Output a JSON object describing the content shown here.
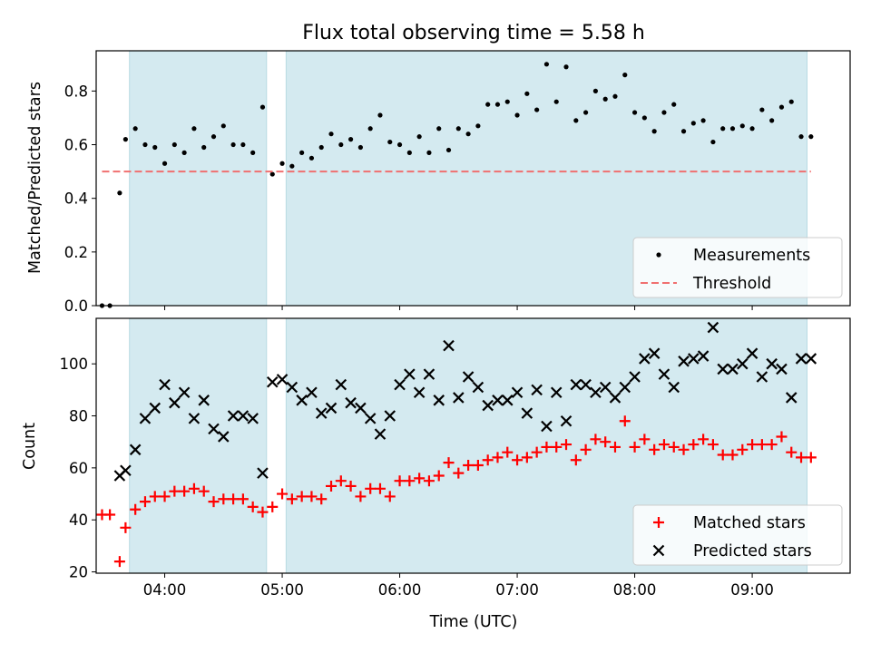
{
  "figure": {
    "title": "Flux total observing time = 5.58 h"
  },
  "chart_data": [
    {
      "type": "scatter",
      "title": "Flux total observing time = 5.58 h",
      "xlabel": "",
      "ylabel": "Matched/Predicted stars",
      "xlim": [
        "03:25",
        "09:50"
      ],
      "ylim": [
        0,
        0.95
      ],
      "xticks": [
        "04:00",
        "05:00",
        "06:00",
        "07:00",
        "08:00",
        "09:00"
      ],
      "xtick_labels_shown": false,
      "yticks": [
        0.0,
        0.2,
        0.4,
        0.6,
        0.8
      ],
      "ytick_labels": [
        "0.0",
        "0.2",
        "0.4",
        "0.6",
        "0.8"
      ],
      "shaded_intervals": [
        [
          "03:42",
          "04:52"
        ],
        [
          "05:02",
          "09:28"
        ]
      ],
      "shade_color": "#d4eaf0",
      "legend_position": "lower right",
      "series": [
        {
          "name": "Measurements",
          "kind": "scatter",
          "marker": "dot",
          "color": "#000000",
          "x": [
            "03:28",
            "03:32",
            "03:37",
            "03:40",
            "03:45",
            "03:50",
            "03:55",
            "04:00",
            "04:05",
            "04:10",
            "04:15",
            "04:20",
            "04:25",
            "04:30",
            "04:35",
            "04:40",
            "04:45",
            "04:50",
            "04:55",
            "05:00",
            "05:05",
            "05:10",
            "05:15",
            "05:20",
            "05:25",
            "05:30",
            "05:35",
            "05:40",
            "05:45",
            "05:50",
            "05:55",
            "06:00",
            "06:05",
            "06:10",
            "06:15",
            "06:20",
            "06:25",
            "06:30",
            "06:35",
            "06:40",
            "06:45",
            "06:50",
            "06:55",
            "07:00",
            "07:05",
            "07:10",
            "07:15",
            "07:20",
            "07:25",
            "07:30",
            "07:35",
            "07:40",
            "07:45",
            "07:50",
            "07:55",
            "08:00",
            "08:05",
            "08:10",
            "08:15",
            "08:20",
            "08:25",
            "08:30",
            "08:35",
            "08:40",
            "08:45",
            "08:50",
            "08:55",
            "09:00",
            "09:05",
            "09:10",
            "09:15",
            "09:20",
            "09:25",
            "09:30"
          ],
          "y": [
            0.0,
            0.0,
            0.42,
            0.62,
            0.66,
            0.6,
            0.59,
            0.53,
            0.6,
            0.57,
            0.66,
            0.59,
            0.63,
            0.67,
            0.6,
            0.6,
            0.57,
            0.74,
            0.49,
            0.53,
            0.52,
            0.57,
            0.55,
            0.59,
            0.64,
            0.6,
            0.62,
            0.59,
            0.66,
            0.71,
            0.61,
            0.6,
            0.57,
            0.63,
            0.57,
            0.66,
            0.58,
            0.66,
            0.64,
            0.67,
            0.75,
            0.75,
            0.76,
            0.71,
            0.79,
            0.73,
            0.9,
            0.76,
            0.89,
            0.69,
            0.72,
            0.8,
            0.77,
            0.78,
            0.86,
            0.72,
            0.7,
            0.65,
            0.72,
            0.75,
            0.65,
            0.68,
            0.69,
            0.61,
            0.66,
            0.66,
            0.67,
            0.66,
            0.73,
            0.69,
            0.74,
            0.76,
            0.63,
            0.63
          ]
        },
        {
          "name": "Threshold",
          "kind": "hline",
          "style": "dashed",
          "color": "#f07070",
          "x": [
            "03:28",
            "09:30"
          ],
          "y": [
            0.5,
            0.5
          ]
        }
      ]
    },
    {
      "type": "scatter",
      "title": "",
      "xlabel": "Time (UTC)",
      "ylabel": "Count",
      "xlim": [
        "03:25",
        "09:50"
      ],
      "ylim": [
        19.5,
        117.5
      ],
      "xticks": [
        "04:00",
        "05:00",
        "06:00",
        "07:00",
        "08:00",
        "09:00"
      ],
      "xtick_labels_shown": true,
      "yticks": [
        20,
        40,
        60,
        80,
        100
      ],
      "ytick_labels": [
        "20",
        "40",
        "60",
        "80",
        "100"
      ],
      "shaded_intervals": [
        [
          "03:42",
          "04:52"
        ],
        [
          "05:02",
          "09:28"
        ]
      ],
      "shade_color": "#d4eaf0",
      "legend_position": "lower right",
      "series": [
        {
          "name": "Matched stars",
          "kind": "scatter",
          "marker": "plus",
          "color": "#ff0000",
          "x": [
            "03:28",
            "03:32",
            "03:37",
            "03:40",
            "03:45",
            "03:50",
            "03:55",
            "04:00",
            "04:05",
            "04:10",
            "04:15",
            "04:20",
            "04:25",
            "04:30",
            "04:35",
            "04:40",
            "04:45",
            "04:50",
            "04:55",
            "05:00",
            "05:05",
            "05:10",
            "05:15",
            "05:20",
            "05:25",
            "05:30",
            "05:35",
            "05:40",
            "05:45",
            "05:50",
            "05:55",
            "06:00",
            "06:05",
            "06:10",
            "06:15",
            "06:20",
            "06:25",
            "06:30",
            "06:35",
            "06:40",
            "06:45",
            "06:50",
            "06:55",
            "07:00",
            "07:05",
            "07:10",
            "07:15",
            "07:20",
            "07:25",
            "07:30",
            "07:35",
            "07:40",
            "07:45",
            "07:50",
            "07:55",
            "08:00",
            "08:05",
            "08:10",
            "08:15",
            "08:20",
            "08:25",
            "08:30",
            "08:35",
            "08:40",
            "08:45",
            "08:50",
            "08:55",
            "09:00",
            "09:05",
            "09:10",
            "09:15",
            "09:20",
            "09:25",
            "09:30"
          ],
          "y": [
            42,
            42,
            24,
            37,
            44,
            47,
            49,
            49,
            51,
            51,
            52,
            51,
            47,
            48,
            48,
            48,
            45,
            43,
            45,
            50,
            48,
            49,
            49,
            48,
            53,
            55,
            53,
            49,
            52,
            52,
            49,
            55,
            55,
            56,
            55,
            57,
            62,
            58,
            61,
            61,
            63,
            64,
            66,
            63,
            64,
            66,
            68,
            68,
            69,
            63,
            67,
            71,
            70,
            68,
            78,
            68,
            71,
            67,
            69,
            68,
            67,
            69,
            71,
            69,
            65,
            65,
            67,
            69,
            69,
            69,
            72,
            66,
            64,
            64
          ]
        },
        {
          "name": "Predicted stars",
          "kind": "scatter",
          "marker": "x",
          "color": "#000000",
          "x": [
            "03:37",
            "03:40",
            "03:45",
            "03:50",
            "03:55",
            "04:00",
            "04:05",
            "04:10",
            "04:15",
            "04:20",
            "04:25",
            "04:30",
            "04:35",
            "04:40",
            "04:45",
            "04:50",
            "04:55",
            "05:00",
            "05:05",
            "05:10",
            "05:15",
            "05:20",
            "05:25",
            "05:30",
            "05:35",
            "05:40",
            "05:45",
            "05:50",
            "05:55",
            "06:00",
            "06:05",
            "06:10",
            "06:15",
            "06:20",
            "06:25",
            "06:30",
            "06:35",
            "06:40",
            "06:45",
            "06:50",
            "06:55",
            "07:00",
            "07:05",
            "07:10",
            "07:15",
            "07:20",
            "07:25",
            "07:30",
            "07:35",
            "07:40",
            "07:45",
            "07:50",
            "07:55",
            "08:00",
            "08:05",
            "08:10",
            "08:15",
            "08:20",
            "08:25",
            "08:30",
            "08:35",
            "08:40",
            "08:45",
            "08:50",
            "08:55",
            "09:00",
            "09:05",
            "09:10",
            "09:15",
            "09:20",
            "09:25",
            "09:30"
          ],
          "y": [
            57,
            59,
            67,
            79,
            83,
            92,
            85,
            89,
            79,
            86,
            75,
            72,
            80,
            80,
            79,
            58,
            93,
            94,
            91,
            86,
            89,
            81,
            83,
            92,
            85,
            83,
            79,
            73,
            80,
            92,
            96,
            89,
            96,
            86,
            107,
            87,
            95,
            91,
            84,
            86,
            86,
            89,
            81,
            90,
            76,
            89,
            78,
            92,
            92,
            89,
            91,
            87,
            91,
            95,
            102,
            104,
            96,
            91,
            101,
            102,
            103,
            114,
            98,
            98,
            100,
            104,
            95,
            100,
            98,
            87,
            102,
            102
          ]
        }
      ]
    }
  ]
}
